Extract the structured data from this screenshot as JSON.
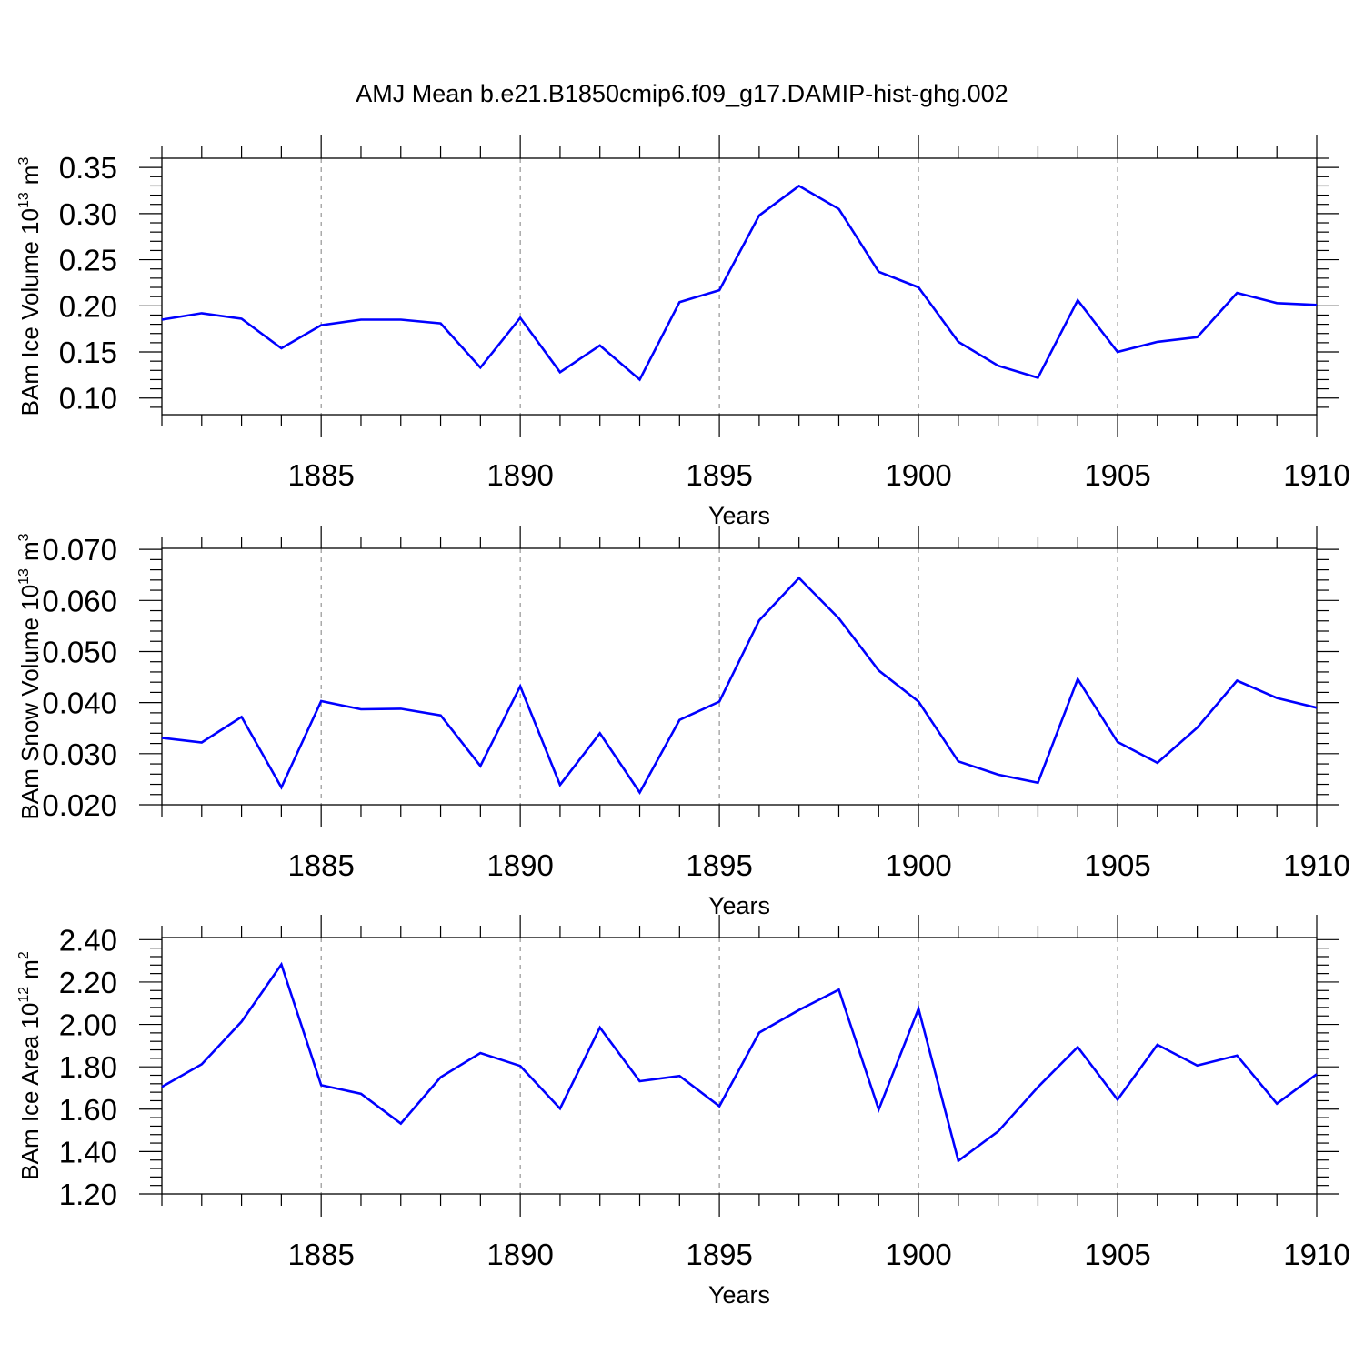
{
  "title": "AMJ Mean b.e21.B1850cmip6.f09_g17.DAMIP-hist-ghg.002",
  "colors": {
    "line": "#0000ff",
    "axis": "#000000",
    "grid": "#808080"
  },
  "chart_data": [
    {
      "type": "line",
      "ylabel": "BAm Ice Volume 10",
      "ylabel_exp": "13",
      "ylabel_unit": "m",
      "ylabel_unit_exp": "3",
      "xlabel": "Years",
      "xlim": [
        1881,
        1910
      ],
      "ylim": [
        0.082,
        0.36
      ],
      "xticks": [
        1885,
        1890,
        1895,
        1900,
        1905,
        1910
      ],
      "xtick_labels": [
        "1885",
        "1890",
        "1895",
        "1900",
        "1905",
        "1910"
      ],
      "yticks": [
        0.1,
        0.15,
        0.2,
        0.25,
        0.3,
        0.35
      ],
      "ytick_labels": [
        "0.10",
        "0.15",
        "0.20",
        "0.25",
        "0.30",
        "0.35"
      ],
      "x": [
        1881,
        1882,
        1883,
        1884,
        1885,
        1886,
        1887,
        1888,
        1889,
        1890,
        1891,
        1892,
        1893,
        1894,
        1895,
        1896,
        1897,
        1898,
        1899,
        1900,
        1901,
        1902,
        1903,
        1904,
        1905,
        1906,
        1907,
        1908,
        1909,
        1910
      ],
      "y": [
        0.185,
        0.192,
        0.186,
        0.154,
        0.179,
        0.185,
        0.185,
        0.181,
        0.133,
        0.187,
        0.128,
        0.157,
        0.12,
        0.204,
        0.217,
        0.298,
        0.33,
        0.305,
        0.237,
        0.22,
        0.161,
        0.135,
        0.122,
        0.206,
        0.15,
        0.161,
        0.166,
        0.214,
        0.203,
        0.201
      ]
    },
    {
      "type": "line",
      "ylabel": "BAm Snow Volume 10",
      "ylabel_exp": "13",
      "ylabel_unit": "m",
      "ylabel_unit_exp": "3",
      "xlabel": "Years",
      "xlim": [
        1881,
        1910
      ],
      "ylim": [
        0.02,
        0.0702
      ],
      "xticks": [
        1885,
        1890,
        1895,
        1900,
        1905,
        1910
      ],
      "xtick_labels": [
        "1885",
        "1890",
        "1895",
        "1900",
        "1905",
        "1910"
      ],
      "yticks": [
        0.02,
        0.03,
        0.04,
        0.05,
        0.06,
        0.07
      ],
      "ytick_labels": [
        "0.020",
        "0.030",
        "0.040",
        "0.050",
        "0.060",
        "0.070"
      ],
      "x": [
        1881,
        1882,
        1883,
        1884,
        1885,
        1886,
        1887,
        1888,
        1889,
        1890,
        1891,
        1892,
        1893,
        1894,
        1895,
        1896,
        1897,
        1898,
        1899,
        1900,
        1901,
        1902,
        1903,
        1904,
        1905,
        1906,
        1907,
        1908,
        1909,
        1910
      ],
      "y": [
        0.0331,
        0.0322,
        0.0372,
        0.0234,
        0.0403,
        0.0387,
        0.0388,
        0.0375,
        0.0276,
        0.0432,
        0.0239,
        0.034,
        0.0224,
        0.0366,
        0.0402,
        0.0561,
        0.0644,
        0.0565,
        0.0463,
        0.0402,
        0.0285,
        0.0259,
        0.0243,
        0.0446,
        0.0323,
        0.0282,
        0.0351,
        0.0443,
        0.0409,
        0.039
      ]
    },
    {
      "type": "line",
      "ylabel": "BAm Ice Area 10",
      "ylabel_exp": "12",
      "ylabel_unit": "m",
      "ylabel_unit_exp": "2",
      "xlabel": "Years",
      "xlim": [
        1881,
        1910
      ],
      "ylim": [
        1.2,
        2.41
      ],
      "xticks": [
        1885,
        1890,
        1895,
        1900,
        1905,
        1910
      ],
      "xtick_labels": [
        "1885",
        "1890",
        "1895",
        "1900",
        "1905",
        "1910"
      ],
      "yticks": [
        1.2,
        1.4,
        1.6,
        1.8,
        2.0,
        2.2,
        2.4
      ],
      "ytick_labels": [
        "1.20",
        "1.40",
        "1.60",
        "1.80",
        "2.00",
        "2.20",
        "2.40"
      ],
      "x": [
        1881,
        1882,
        1883,
        1884,
        1885,
        1886,
        1887,
        1888,
        1889,
        1890,
        1891,
        1892,
        1893,
        1894,
        1895,
        1896,
        1897,
        1898,
        1899,
        1900,
        1901,
        1902,
        1903,
        1904,
        1905,
        1906,
        1907,
        1908,
        1909,
        1910
      ],
      "y": [
        1.705,
        1.812,
        2.013,
        2.283,
        1.713,
        1.673,
        1.532,
        1.751,
        1.865,
        1.804,
        1.603,
        1.985,
        1.732,
        1.757,
        1.614,
        1.961,
        2.068,
        2.164,
        1.598,
        2.074,
        1.356,
        1.495,
        1.704,
        1.893,
        1.645,
        1.904,
        1.806,
        1.853,
        1.626,
        1.765
      ]
    }
  ]
}
